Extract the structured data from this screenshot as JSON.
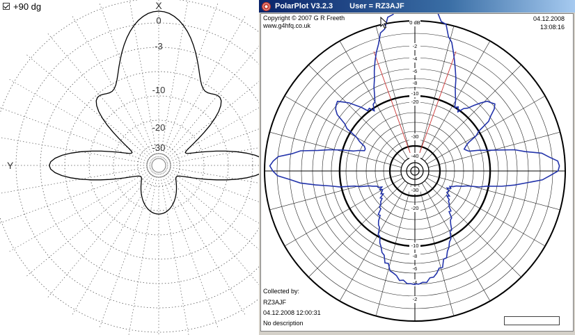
{
  "left_panel": {
    "checkbox_label": "+90 dg",
    "checkbox_checked": true,
    "axis_top_label": "X",
    "axis_left_label": "Y",
    "ring_labels": [
      "0",
      "-3",
      "-10",
      "-20",
      "-30"
    ],
    "grid_color": "#555555",
    "trace_color": "#000000"
  },
  "window": {
    "app_name": "PolarPlot V3.2.3",
    "user_label": "User = RZ3AJF",
    "icon": "rose-app-icon",
    "titlebar_color": "#0a246a"
  },
  "plot": {
    "copyright": "Copyright © 2007 G R Freeth",
    "website": "www.g4hfq.co.uk",
    "date": "04.12.2008",
    "time": "13:08:16",
    "top_db_label": "0 dB",
    "scale_upper": [
      "-2",
      "-4",
      "-6",
      "-8",
      "-10",
      "-20",
      "-30",
      "-40"
    ],
    "scale_lower": [
      "-30",
      "-20",
      "-10",
      "-8",
      "-6",
      "-4",
      "-2"
    ],
    "collected_by_label": "Collected by:",
    "collected_by_user": "RZ3AJF",
    "collected_date": "04.12.2008 12:00:31",
    "description": "No description",
    "trace_color": "#2233aa",
    "beamwidth_line_color": "#cc3333"
  }
}
